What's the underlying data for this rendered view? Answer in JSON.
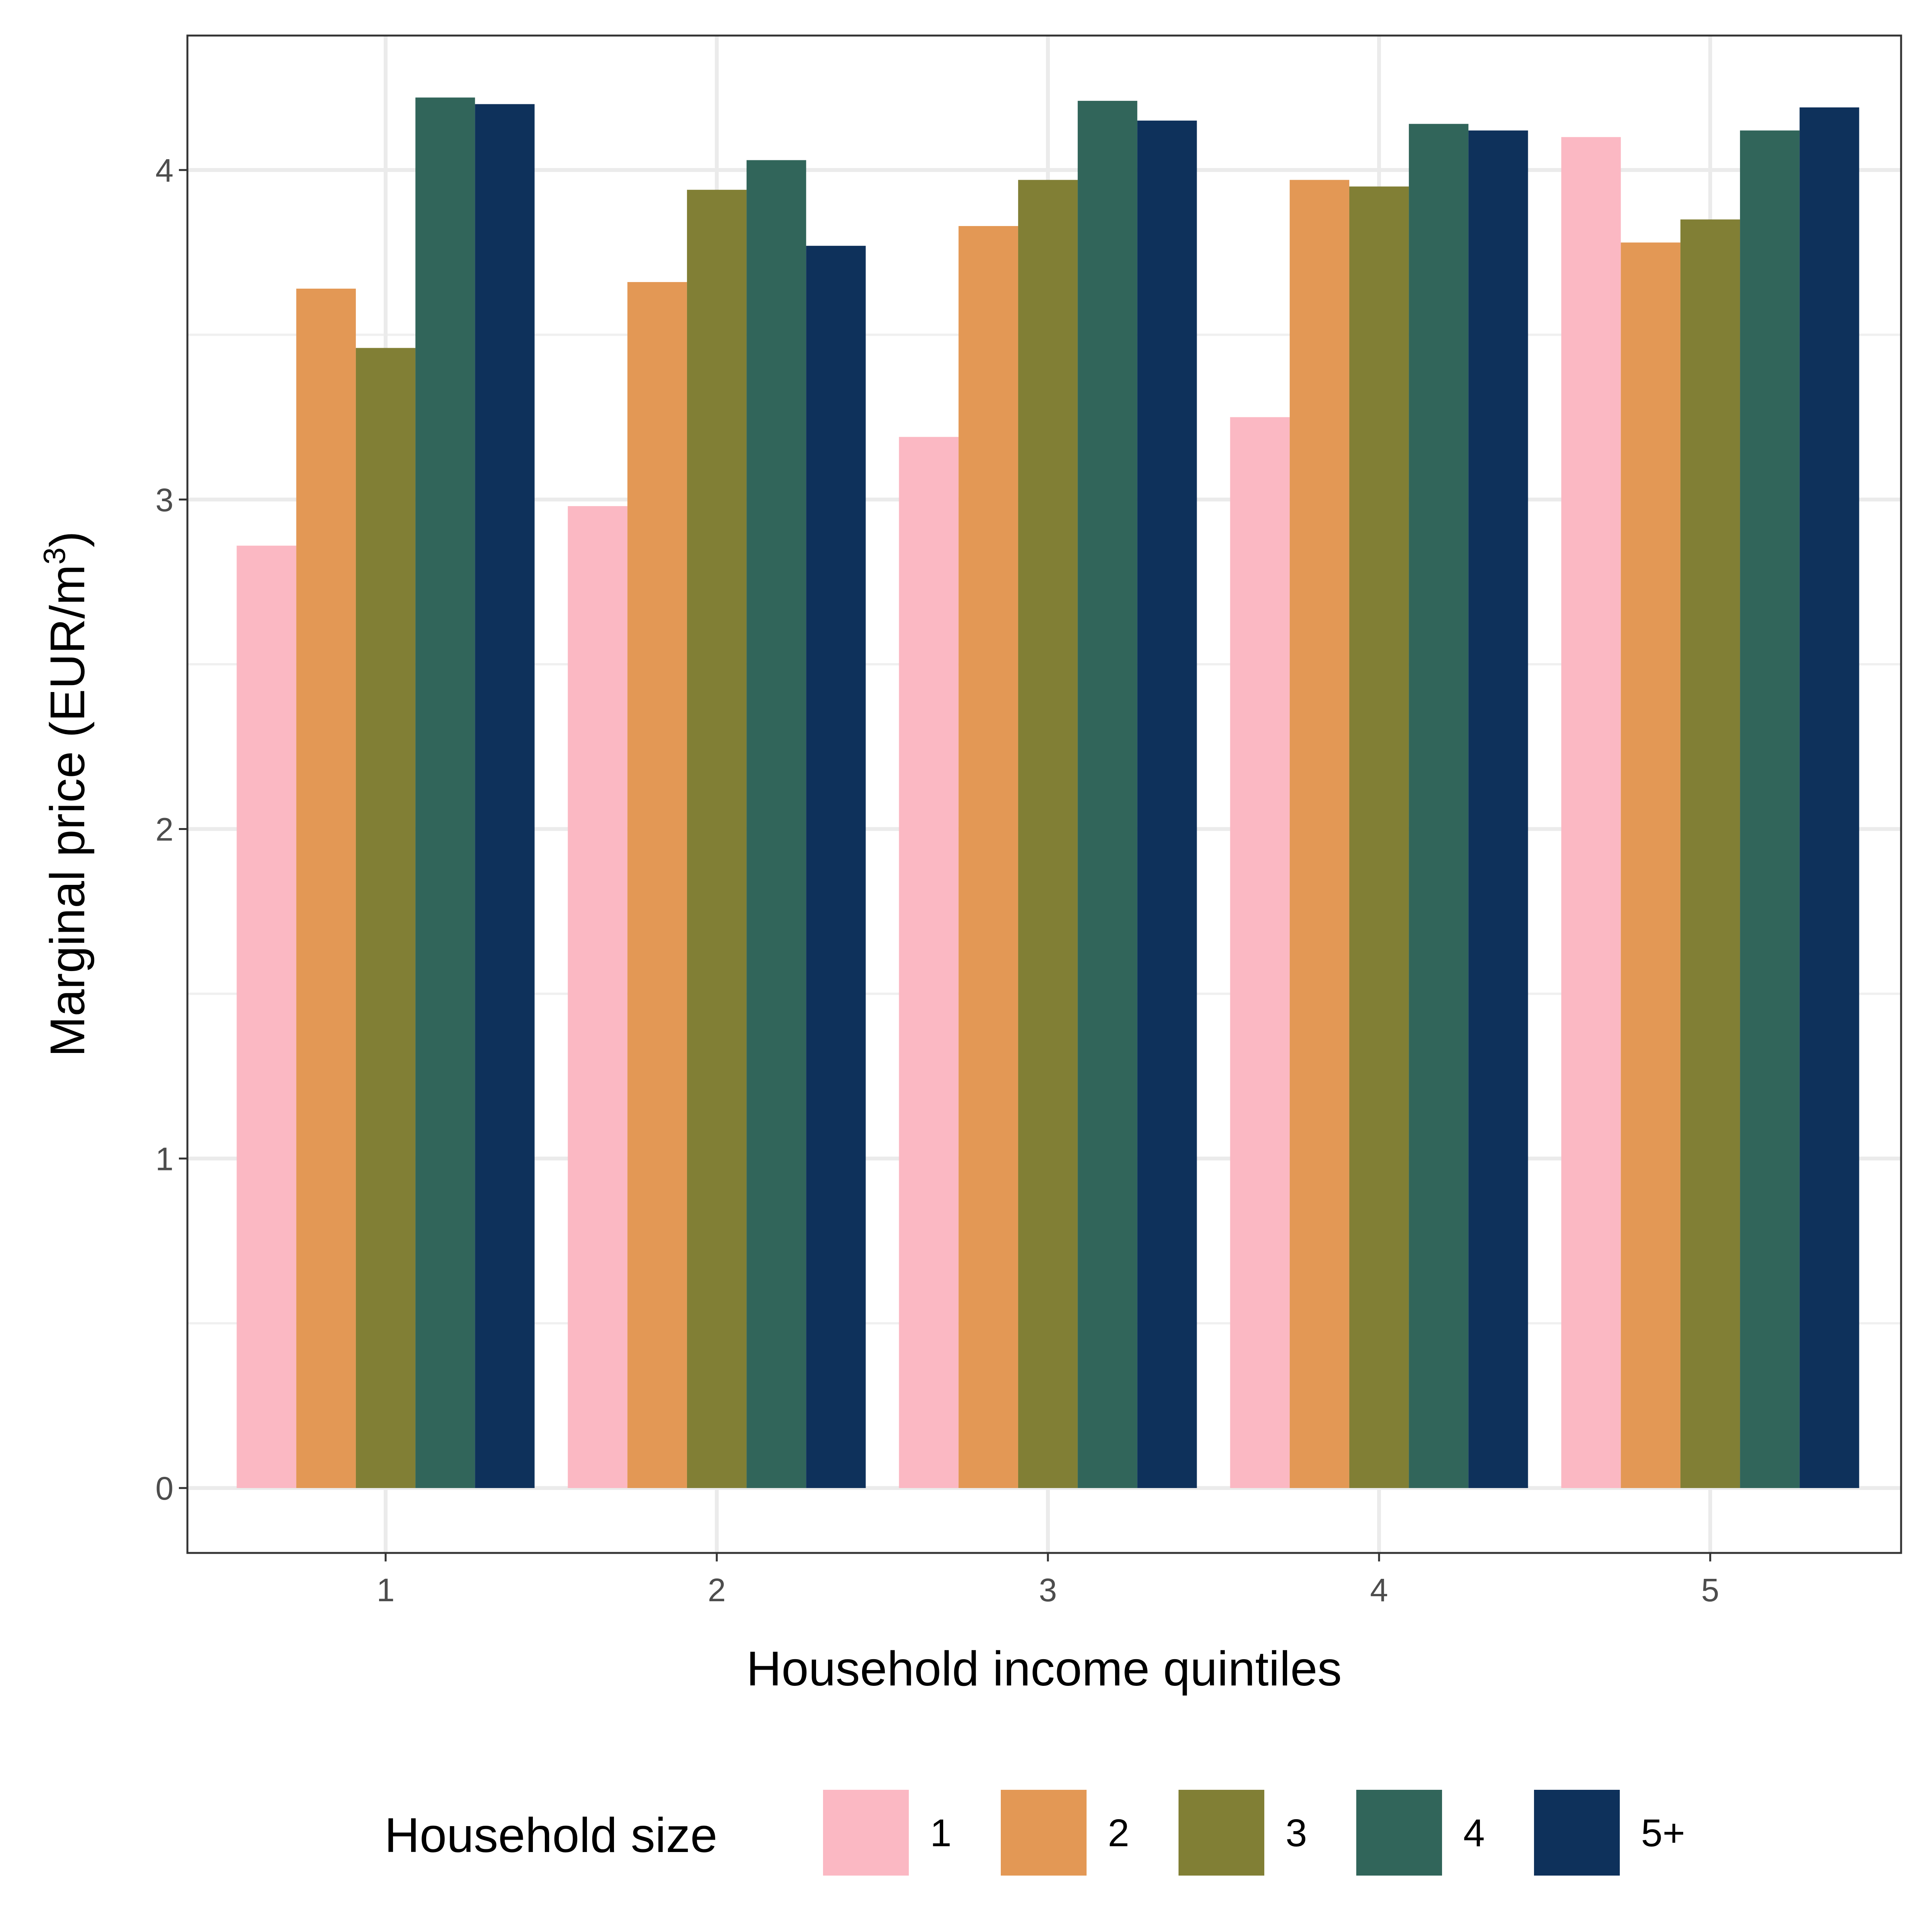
{
  "chart_data": {
    "type": "bar",
    "title": "",
    "xlabel": "Household income quintiles",
    "ylabel_main": "Marginal price (EUR/m",
    "ylabel_sup": "3",
    "ylabel_close": ")",
    "categories": [
      "1",
      "2",
      "3",
      "4",
      "5"
    ],
    "yticks": [
      "0",
      "1",
      "2",
      "3",
      "4"
    ],
    "ylim": [
      -0.2,
      4.42
    ],
    "grid": true,
    "legend": {
      "title": "Household size",
      "position": "bottom"
    },
    "series": [
      {
        "name": "1",
        "color": "#FBB8C3",
        "values": [
          2.86,
          2.98,
          3.19,
          3.25,
          4.1
        ]
      },
      {
        "name": "2",
        "color": "#E39855",
        "values": [
          3.64,
          3.66,
          3.83,
          3.97,
          3.78
        ]
      },
      {
        "name": "3",
        "color": "#817F35",
        "values": [
          3.46,
          3.94,
          3.97,
          3.95,
          3.85
        ]
      },
      {
        "name": "4",
        "color": "#31655A",
        "values": [
          4.22,
          4.03,
          4.21,
          4.14,
          4.12
        ]
      },
      {
        "name": "5+",
        "color": "#0E315B",
        "values": [
          4.2,
          3.77,
          4.15,
          4.12,
          4.19
        ]
      }
    ]
  }
}
